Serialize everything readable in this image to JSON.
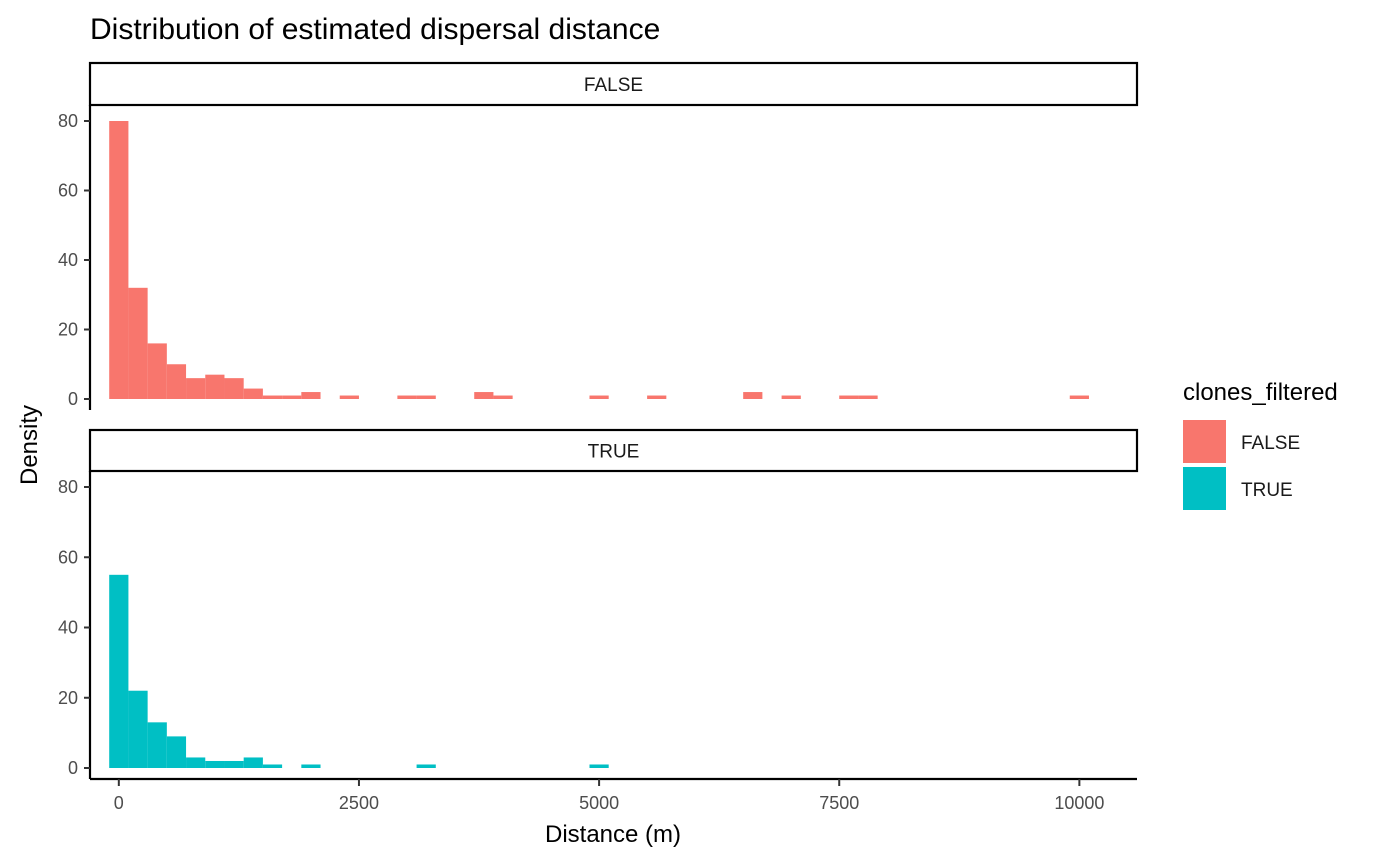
{
  "chart_data": {
    "type": "bar",
    "title": "Distribution of estimated dispersal distance",
    "xlabel": "Distance (m)",
    "ylabel": "Density",
    "xlim": [
      -300,
      10600
    ],
    "ylim": [
      0,
      83
    ],
    "x_ticks": [
      0,
      2500,
      5000,
      7500,
      10000
    ],
    "y_ticks": [
      0,
      20,
      40,
      60,
      80
    ],
    "bin_width": 200,
    "grid": false,
    "legend": {
      "title": "clones_filtered",
      "placement": "right",
      "entries": [
        {
          "label": "FALSE",
          "color": "#F8766D"
        },
        {
          "label": "TRUE",
          "color": "#00BFC4"
        }
      ]
    },
    "facets": [
      {
        "label": "FALSE",
        "color": "#F8766D",
        "bins": [
          {
            "x": 0,
            "y": 80
          },
          {
            "x": 200,
            "y": 32
          },
          {
            "x": 400,
            "y": 16
          },
          {
            "x": 600,
            "y": 10
          },
          {
            "x": 800,
            "y": 6
          },
          {
            "x": 1000,
            "y": 7
          },
          {
            "x": 1200,
            "y": 6
          },
          {
            "x": 1400,
            "y": 3
          },
          {
            "x": 1600,
            "y": 1
          },
          {
            "x": 1800,
            "y": 1
          },
          {
            "x": 2000,
            "y": 2
          },
          {
            "x": 2400,
            "y": 1
          },
          {
            "x": 3000,
            "y": 1
          },
          {
            "x": 3200,
            "y": 1
          },
          {
            "x": 3800,
            "y": 2
          },
          {
            "x": 4000,
            "y": 1
          },
          {
            "x": 5000,
            "y": 1
          },
          {
            "x": 5600,
            "y": 1
          },
          {
            "x": 6600,
            "y": 2
          },
          {
            "x": 7000,
            "y": 1
          },
          {
            "x": 7600,
            "y": 1
          },
          {
            "x": 7800,
            "y": 1
          },
          {
            "x": 10000,
            "y": 1
          }
        ]
      },
      {
        "label": "TRUE",
        "color": "#00BFC4",
        "bins": [
          {
            "x": 0,
            "y": 55
          },
          {
            "x": 200,
            "y": 22
          },
          {
            "x": 400,
            "y": 13
          },
          {
            "x": 600,
            "y": 9
          },
          {
            "x": 800,
            "y": 3
          },
          {
            "x": 1000,
            "y": 2
          },
          {
            "x": 1200,
            "y": 2
          },
          {
            "x": 1400,
            "y": 3
          },
          {
            "x": 1600,
            "y": 1
          },
          {
            "x": 2000,
            "y": 1
          },
          {
            "x": 3200,
            "y": 1
          },
          {
            "x": 5000,
            "y": 1
          }
        ]
      }
    ]
  }
}
